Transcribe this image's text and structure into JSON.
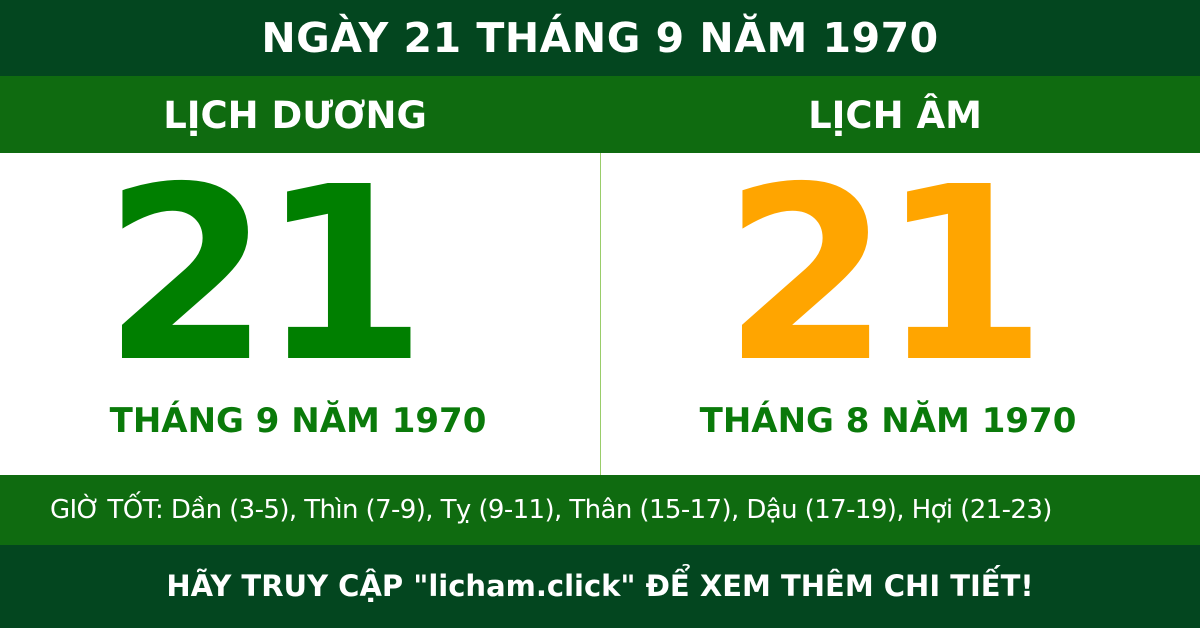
{
  "header": {
    "title": "NGÀY 21 THÁNG 9 NĂM 1970"
  },
  "solar": {
    "label": "LỊCH DƯƠNG",
    "day": "21",
    "month_year": "THÁNG 9 NĂM 1970"
  },
  "lunar": {
    "label": "LỊCH ÂM",
    "day": "21",
    "month_year": "THÁNG 8 NĂM 1970"
  },
  "good_hours": {
    "text": "GIỜ TỐT: Dần (3-5), Thìn (7-9), Tỵ (9-11), Thân (15-17), Dậu (17-19), Hợi (21-23)"
  },
  "footer": {
    "text": "HÃY TRUY CẬP \"licham.click\" ĐỂ XEM THÊM CHI TIẾT!"
  },
  "colors": {
    "dark_green": "#03461f",
    "band_green": "#0f6b10",
    "solar_day": "#007f00",
    "lunar_day": "#ffa500"
  }
}
